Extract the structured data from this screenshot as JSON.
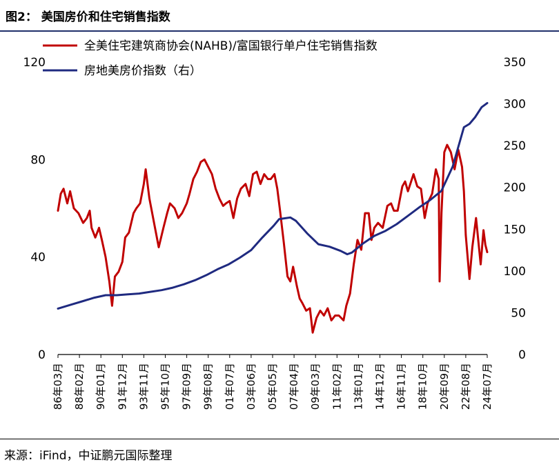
{
  "figure": {
    "title": "图2：  美国房价和住宅销售指数",
    "source": "来源：iFind，中证鹏元国际整理"
  },
  "chart_data": {
    "type": "line",
    "legend_position": "top",
    "grid": false,
    "colors": {
      "left_series": "#c00000",
      "right_series": "#1f2a80"
    },
    "left_axis": {
      "ticks": [
        "0",
        "40",
        "80",
        "120"
      ],
      "ylim": [
        0,
        120
      ]
    },
    "right_axis": {
      "ticks": [
        "0",
        "50",
        "100",
        "150",
        "200",
        "250",
        "300",
        "350"
      ],
      "ylim": [
        0,
        350
      ]
    },
    "x_tick_labels": [
      "86年03月",
      "88年02月",
      "90年01月",
      "91年12月",
      "93年11月",
      "95年10月",
      "97年09月",
      "99年08月",
      "01年07月",
      "03年06月",
      "05年05月",
      "07年04月",
      "09年03月",
      "11年02月",
      "13年01月",
      "14年12月",
      "16年11月",
      "18年10月",
      "20年09月",
      "22年08月",
      "24年07月"
    ],
    "x_range": [
      "1986-03",
      "2024-07"
    ],
    "series": [
      {
        "name": "全美住宅建筑商协会(NAHB)/富国银行单户住宅销售指数",
        "axis": "left",
        "points": [
          [
            "1986-03",
            59
          ],
          [
            "1986-06",
            66
          ],
          [
            "1986-09",
            68
          ],
          [
            "1987-01",
            62
          ],
          [
            "1987-04",
            67
          ],
          [
            "1987-08",
            60
          ],
          [
            "1988-01",
            58
          ],
          [
            "1988-06",
            54
          ],
          [
            "1988-10",
            56
          ],
          [
            "1989-01",
            59
          ],
          [
            "1989-03",
            52
          ],
          [
            "1989-07",
            48
          ],
          [
            "1989-11",
            52
          ],
          [
            "1990-02",
            47
          ],
          [
            "1990-06",
            40
          ],
          [
            "1990-10",
            30
          ],
          [
            "1991-01",
            20
          ],
          [
            "1991-04",
            32
          ],
          [
            "1991-08",
            34
          ],
          [
            "1991-12",
            38
          ],
          [
            "1992-03",
            48
          ],
          [
            "1992-07",
            50
          ],
          [
            "1992-12",
            58
          ],
          [
            "1993-03",
            60
          ],
          [
            "1993-07",
            62
          ],
          [
            "1993-11",
            70
          ],
          [
            "1994-01",
            76
          ],
          [
            "1994-05",
            64
          ],
          [
            "1994-11",
            52
          ],
          [
            "1995-03",
            44
          ],
          [
            "1995-08",
            52
          ],
          [
            "1995-12",
            58
          ],
          [
            "1996-03",
            62
          ],
          [
            "1996-08",
            60
          ],
          [
            "1996-12",
            56
          ],
          [
            "1997-04",
            58
          ],
          [
            "1997-09",
            62
          ],
          [
            "1997-12",
            66
          ],
          [
            "1998-04",
            72
          ],
          [
            "1998-08",
            75
          ],
          [
            "1998-12",
            79
          ],
          [
            "1999-04",
            80
          ],
          [
            "1999-08",
            77
          ],
          [
            "1999-12",
            74
          ],
          [
            "2000-04",
            68
          ],
          [
            "2000-08",
            64
          ],
          [
            "2000-12",
            61
          ],
          [
            "2001-03",
            62
          ],
          [
            "2001-07",
            63
          ],
          [
            "2001-11",
            56
          ],
          [
            "2002-03",
            64
          ],
          [
            "2002-07",
            68
          ],
          [
            "2002-12",
            70
          ],
          [
            "2003-04",
            65
          ],
          [
            "2003-08",
            74
          ],
          [
            "2003-12",
            75
          ],
          [
            "2004-04",
            70
          ],
          [
            "2004-08",
            74
          ],
          [
            "2004-12",
            72
          ],
          [
            "2005-03",
            72
          ],
          [
            "2005-07",
            74
          ],
          [
            "2005-10",
            68
          ],
          [
            "2006-01",
            59
          ],
          [
            "2006-05",
            46
          ],
          [
            "2006-09",
            32
          ],
          [
            "2006-12",
            30
          ],
          [
            "2007-03",
            36
          ],
          [
            "2007-07",
            28
          ],
          [
            "2007-10",
            23
          ],
          [
            "2008-01",
            21
          ],
          [
            "2008-05",
            18
          ],
          [
            "2008-09",
            19
          ],
          [
            "2008-12",
            9
          ],
          [
            "2009-04",
            15
          ],
          [
            "2009-08",
            18
          ],
          [
            "2009-12",
            16
          ],
          [
            "2010-04",
            19
          ],
          [
            "2010-08",
            14
          ],
          [
            "2010-12",
            16
          ],
          [
            "2011-04",
            16
          ],
          [
            "2011-09",
            14
          ],
          [
            "2011-12",
            20
          ],
          [
            "2012-04",
            25
          ],
          [
            "2012-08",
            37
          ],
          [
            "2012-12",
            47
          ],
          [
            "2013-04",
            43
          ],
          [
            "2013-08",
            58
          ],
          [
            "2013-12",
            58
          ],
          [
            "2014-03",
            47
          ],
          [
            "2014-06",
            52
          ],
          [
            "2014-10",
            54
          ],
          [
            "2015-03",
            52
          ],
          [
            "2015-08",
            61
          ],
          [
            "2015-12",
            62
          ],
          [
            "2016-03",
            59
          ],
          [
            "2016-07",
            59
          ],
          [
            "2016-12",
            69
          ],
          [
            "2017-03",
            71
          ],
          [
            "2017-06",
            67
          ],
          [
            "2017-12",
            74
          ],
          [
            "2018-04",
            69
          ],
          [
            "2018-08",
            68
          ],
          [
            "2018-12",
            56
          ],
          [
            "2019-03",
            62
          ],
          [
            "2019-08",
            66
          ],
          [
            "2019-12",
            76
          ],
          [
            "2020-03",
            72
          ],
          [
            "2020-04",
            30
          ],
          [
            "2020-06",
            58
          ],
          [
            "2020-09",
            83
          ],
          [
            "2020-12",
            86
          ],
          [
            "2021-04",
            83
          ],
          [
            "2021-08",
            76
          ],
          [
            "2021-12",
            84
          ],
          [
            "2022-04",
            77
          ],
          [
            "2022-06",
            67
          ],
          [
            "2022-08",
            49
          ],
          [
            "2022-12",
            31
          ],
          [
            "2023-03",
            44
          ],
          [
            "2023-07",
            56
          ],
          [
            "2023-12",
            37
          ],
          [
            "2024-03",
            51
          ],
          [
            "2024-05",
            45
          ],
          [
            "2024-07",
            42
          ]
        ]
      },
      {
        "name": "房地美房价指数（右）",
        "axis": "right",
        "points": [
          [
            "1986-03",
            55
          ],
          [
            "1987-06",
            60
          ],
          [
            "1988-06",
            64
          ],
          [
            "1989-06",
            68
          ],
          [
            "1990-06",
            71
          ],
          [
            "1991-06",
            71
          ],
          [
            "1992-06",
            72
          ],
          [
            "1993-06",
            73
          ],
          [
            "1994-06",
            75
          ],
          [
            "1995-06",
            77
          ],
          [
            "1996-06",
            80
          ],
          [
            "1997-06",
            84
          ],
          [
            "1998-06",
            89
          ],
          [
            "1999-06",
            95
          ],
          [
            "2000-06",
            102
          ],
          [
            "2001-06",
            108
          ],
          [
            "2002-06",
            116
          ],
          [
            "2003-06",
            125
          ],
          [
            "2004-06",
            140
          ],
          [
            "2005-06",
            154
          ],
          [
            "2005-12",
            162
          ],
          [
            "2006-06",
            163
          ],
          [
            "2006-12",
            164
          ],
          [
            "2007-06",
            160
          ],
          [
            "2008-06",
            145
          ],
          [
            "2009-06",
            132
          ],
          [
            "2010-06",
            129
          ],
          [
            "2011-06",
            124
          ],
          [
            "2012-01",
            120
          ],
          [
            "2012-06",
            122
          ],
          [
            "2013-06",
            133
          ],
          [
            "2014-06",
            142
          ],
          [
            "2015-06",
            148
          ],
          [
            "2016-06",
            156
          ],
          [
            "2017-06",
            166
          ],
          [
            "2018-06",
            176
          ],
          [
            "2019-06",
            185
          ],
          [
            "2020-06",
            196
          ],
          [
            "2021-06",
            225
          ],
          [
            "2022-06",
            272
          ],
          [
            "2022-12",
            276
          ],
          [
            "2023-06",
            284
          ],
          [
            "2024-01",
            296
          ],
          [
            "2024-07",
            301
          ]
        ]
      }
    ]
  }
}
